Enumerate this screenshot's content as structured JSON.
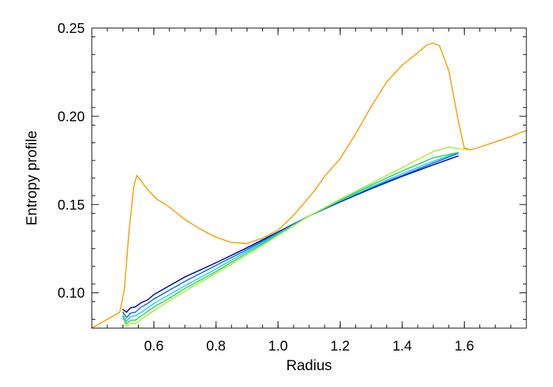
{
  "chart_data": {
    "type": "line",
    "title": "",
    "xlabel": "Radius",
    "ylabel": "Entropy profile",
    "xlim": [
      0.4,
      1.8
    ],
    "ylim": [
      0.08,
      0.25
    ],
    "xticks": [
      0.6,
      0.8,
      1.0,
      1.2,
      1.4,
      1.6
    ],
    "xtick_labels": [
      "0.6",
      "0.8",
      "1.0",
      "1.2",
      "1.4",
      "1.6"
    ],
    "yticks": [
      0.1,
      0.15,
      0.2,
      0.25
    ],
    "ytick_labels": [
      "0.10",
      "0.15",
      "0.20",
      "0.25"
    ],
    "grid": false,
    "legend": "none",
    "series": [
      {
        "color": "#0000b0",
        "x": [
          0.5,
          0.512,
          0.525,
          0.54,
          0.56,
          0.58,
          0.6,
          0.65,
          0.7,
          0.8,
          0.9,
          1.0,
          1.1,
          1.2,
          1.3,
          1.4,
          1.5,
          1.58
        ],
        "y": [
          0.0905,
          0.089,
          0.0915,
          0.092,
          0.0945,
          0.096,
          0.099,
          0.104,
          0.109,
          0.117,
          0.1255,
          0.1345,
          0.1435,
          0.1515,
          0.159,
          0.166,
          0.1725,
          0.1775
        ]
      },
      {
        "color": "#0070e0",
        "x": [
          0.5,
          0.512,
          0.525,
          0.54,
          0.56,
          0.58,
          0.6,
          0.65,
          0.7,
          0.8,
          0.9,
          1.0,
          1.1,
          1.2,
          1.3,
          1.4,
          1.5,
          1.58
        ],
        "y": [
          0.089,
          0.086,
          0.0885,
          0.089,
          0.092,
          0.094,
          0.0965,
          0.1015,
          0.1065,
          0.1155,
          0.1245,
          0.134,
          0.1435,
          0.152,
          0.1595,
          0.1665,
          0.1735,
          0.179
        ]
      },
      {
        "color": "#30c8f0",
        "x": [
          0.5,
          0.512,
          0.525,
          0.54,
          0.56,
          0.58,
          0.6,
          0.65,
          0.7,
          0.8,
          0.9,
          1.0,
          1.1,
          1.2,
          1.3,
          1.4,
          1.5,
          1.58
        ],
        "y": [
          0.0875,
          0.084,
          0.0865,
          0.087,
          0.089,
          0.0915,
          0.094,
          0.099,
          0.104,
          0.1135,
          0.1235,
          0.1335,
          0.1435,
          0.152,
          0.16,
          0.1675,
          0.1745,
          0.1795
        ]
      },
      {
        "color": "#20d860",
        "x": [
          0.5,
          0.512,
          0.525,
          0.54,
          0.56,
          0.58,
          0.6,
          0.65,
          0.7,
          0.8,
          0.9,
          1.0,
          1.1,
          1.2,
          1.3,
          1.4,
          1.5,
          1.58
        ],
        "y": [
          0.0865,
          0.0825,
          0.0845,
          0.0845,
          0.087,
          0.0895,
          0.092,
          0.097,
          0.1025,
          0.112,
          0.1225,
          0.133,
          0.1435,
          0.1525,
          0.161,
          0.169,
          0.1765,
          0.1795
        ]
      },
      {
        "color": "#a8ee30",
        "x": [
          0.5,
          0.512,
          0.525,
          0.54,
          0.56,
          0.58,
          0.6,
          0.65,
          0.7,
          0.8,
          0.9,
          1.0,
          1.1,
          1.2,
          1.3,
          1.4,
          1.5,
          1.55,
          1.59,
          1.62
        ],
        "y": [
          0.0855,
          0.081,
          0.083,
          0.0825,
          0.085,
          0.0875,
          0.09,
          0.0955,
          0.101,
          0.111,
          0.1215,
          0.1325,
          0.1435,
          0.153,
          0.162,
          0.171,
          0.18,
          0.1825,
          0.1815,
          0.181
        ]
      },
      {
        "color": "#f5a000",
        "x": [
          0.4,
          0.45,
          0.49,
          0.505,
          0.52,
          0.535,
          0.545,
          0.56,
          0.58,
          0.61,
          0.65,
          0.7,
          0.75,
          0.8,
          0.85,
          0.9,
          0.95,
          1.0,
          1.05,
          1.08,
          1.12,
          1.15,
          1.2,
          1.25,
          1.3,
          1.35,
          1.4,
          1.45,
          1.48,
          1.5,
          1.52,
          1.55,
          1.58,
          1.6,
          1.62,
          1.65,
          1.7,
          1.75,
          1.8
        ],
        "y": [
          0.08,
          0.085,
          0.089,
          0.102,
          0.135,
          0.16,
          0.1665,
          0.163,
          0.1585,
          0.153,
          0.1485,
          0.1415,
          0.136,
          0.1315,
          0.1285,
          0.128,
          0.131,
          0.1355,
          0.144,
          0.15,
          0.1585,
          0.166,
          0.176,
          0.19,
          0.2055,
          0.2195,
          0.229,
          0.236,
          0.2405,
          0.2415,
          0.24,
          0.226,
          0.198,
          0.182,
          0.181,
          0.1825,
          0.1855,
          0.1885,
          0.192
        ]
      }
    ]
  }
}
